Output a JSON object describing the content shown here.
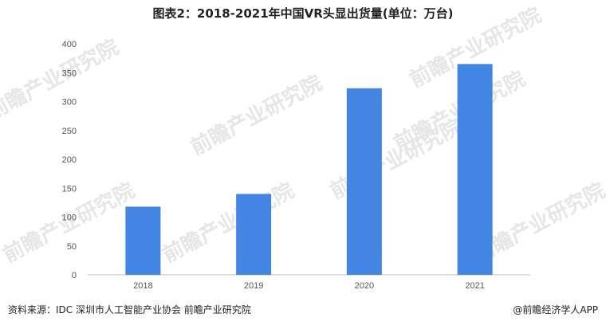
{
  "title": "图表2：2018-2021年中国VR头显出货量(单位：万台)",
  "watermark": "前瞻产业研究院",
  "footer": {
    "source": "资料来源：IDC 深圳市人工智能产业协会 前瞻产业研究院",
    "brand": "@前瞻经济学人APP"
  },
  "colors": {
    "bar": "#4285E3",
    "axis": "#bfbfbf"
  },
  "chart_data": {
    "type": "bar",
    "categories": [
      "2018",
      "2019",
      "2020",
      "2021"
    ],
    "values": [
      118,
      140,
      323,
      365
    ],
    "title": "图表2：2018-2021年中国VR头显出货量(单位：万台)",
    "xlabel": "",
    "ylabel": "",
    "ylim": [
      0,
      400
    ],
    "yticks": [
      0,
      50,
      100,
      150,
      200,
      250,
      300,
      350,
      400
    ],
    "grid": false,
    "legend": "none"
  }
}
